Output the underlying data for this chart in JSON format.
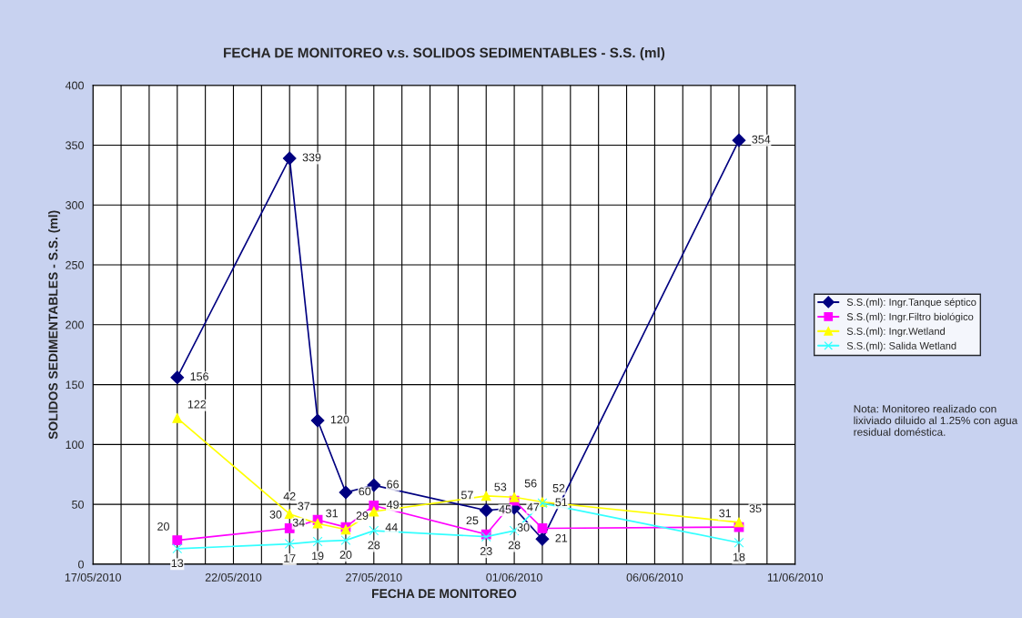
{
  "chart_data": {
    "type": "line",
    "title": "FECHA DE MONITOREO v.s. SOLIDOS SEDIMENTABLES - S.S. (ml)",
    "xlabel": "FECHA DE MONITOREO",
    "ylabel": "SOLIDOS SEDIMENTABLES - S.S. (ml)",
    "x": [
      "2010-05-20",
      "2010-05-24",
      "2010-05-25",
      "2010-05-26",
      "2010-05-27",
      "2010-05-31",
      "2010-06-01",
      "2010-06-02",
      "2010-06-09"
    ],
    "series": [
      {
        "name": "S.S.(ml): Ingr.Tanque séptico",
        "color": "#000080",
        "marker": "diamond",
        "values": [
          156,
          339,
          120,
          60,
          66,
          45,
          47,
          21,
          354
        ]
      },
      {
        "name": "S.S.(ml): Ingr.Filtro biológico",
        "color": "#ff00ff",
        "marker": "square",
        "values": [
          20,
          30,
          37,
          31,
          49,
          25,
          53,
          30,
          31
        ]
      },
      {
        "name": "S.S.(ml): Ingr.Wetland",
        "color": "#ffff00",
        "marker": "triangle",
        "values": [
          122,
          42,
          34,
          29,
          44,
          57,
          56,
          52,
          35
        ]
      },
      {
        "name": "S.S.(ml): Salida Wetland",
        "color": "#33ffff",
        "marker": "cross",
        "values": [
          13,
          17,
          19,
          20,
          28,
          23,
          28,
          51,
          18
        ]
      }
    ],
    "xlim": [
      "2010-05-17",
      "2010-06-11"
    ],
    "xticks": [
      {
        "value": "2010-05-17",
        "label": "17/05/2010"
      },
      {
        "value": "2010-05-18",
        "label": null
      },
      {
        "value": "2010-05-19",
        "label": null
      },
      {
        "value": "2010-05-20",
        "label": null
      },
      {
        "value": "2010-05-21",
        "label": null
      },
      {
        "value": "2010-05-22",
        "label": "22/05/2010"
      },
      {
        "value": "2010-05-23",
        "label": null
      },
      {
        "value": "2010-05-24",
        "label": null
      },
      {
        "value": "2010-05-25",
        "label": null
      },
      {
        "value": "2010-05-26",
        "label": null
      },
      {
        "value": "2010-05-27",
        "label": "27/05/2010"
      },
      {
        "value": "2010-05-28",
        "label": null
      },
      {
        "value": "2010-05-29",
        "label": null
      },
      {
        "value": "2010-05-30",
        "label": null
      },
      {
        "value": "2010-05-31",
        "label": null
      },
      {
        "value": "2010-06-01",
        "label": "01/06/2010"
      },
      {
        "value": "2010-06-02",
        "label": null
      },
      {
        "value": "2010-06-03",
        "label": null
      },
      {
        "value": "2010-06-04",
        "label": null
      },
      {
        "value": "2010-06-05",
        "label": null
      },
      {
        "value": "2010-06-06",
        "label": "06/06/2010"
      },
      {
        "value": "2010-06-07",
        "label": null
      },
      {
        "value": "2010-06-08",
        "label": null
      },
      {
        "value": "2010-06-09",
        "label": null
      },
      {
        "value": "2010-06-10",
        "label": null
      },
      {
        "value": "2010-06-11",
        "label": "11/06/2010"
      }
    ],
    "ylim": [
      0,
      400
    ],
    "yticks": [
      0,
      50,
      100,
      150,
      200,
      250,
      300,
      350,
      400
    ],
    "grid": true,
    "legend": "right",
    "data_labels": true,
    "line_style": "solid",
    "annotations": [
      "Nota: Monitoreo realizado con lixiviado diluido al 1.25% con agua residual doméstica."
    ]
  }
}
